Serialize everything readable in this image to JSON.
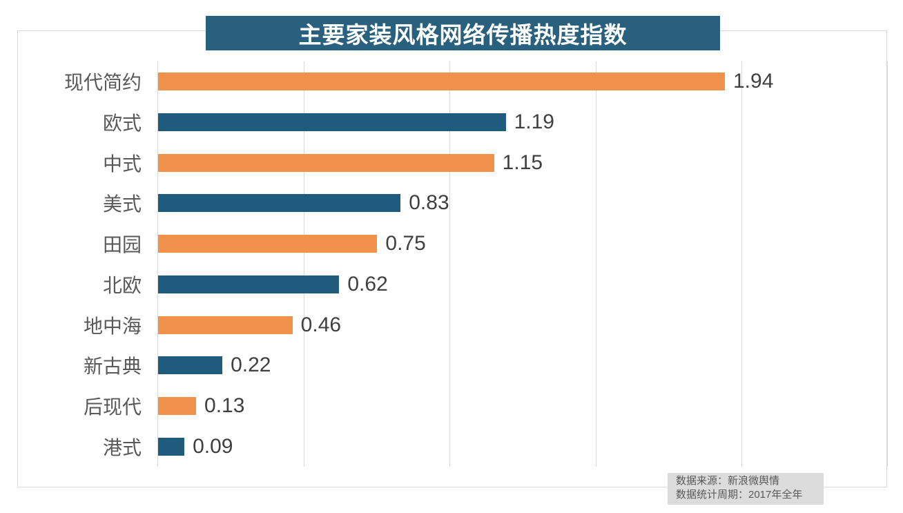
{
  "colors": {
    "orange": "#F0924C",
    "blue": "#1E5B7D",
    "banner_bg": "#28607E",
    "banner_text": "#FFFFFF",
    "gridline": "#D9D9D9",
    "frame_border": "#D9D9D9",
    "category_label": "#595959",
    "value_label": "#404040",
    "source_bg": "#DCDCDC",
    "source_text": "#595959"
  },
  "chart_data": {
    "type": "bar",
    "orientation": "horizontal",
    "title": "主要家装风格网络传播热度指数",
    "categories": [
      "现代简约",
      "欧式",
      "中式",
      "美式",
      "田园",
      "北欧",
      "地中海",
      "新古典",
      "后现代",
      "港式"
    ],
    "values": [
      1.94,
      1.19,
      1.15,
      0.83,
      0.75,
      0.62,
      0.46,
      0.22,
      0.13,
      0.09
    ],
    "value_labels": [
      "1.94",
      "1.19",
      "1.15",
      "0.83",
      "0.75",
      "0.62",
      "0.46",
      "0.22",
      "0.13",
      "0.09"
    ],
    "bar_colors": [
      "orange",
      "blue",
      "orange",
      "blue",
      "orange",
      "blue",
      "orange",
      "blue",
      "orange",
      "blue"
    ],
    "xlabel": "",
    "ylabel": "",
    "xlim": [
      0,
      2.5
    ],
    "grid_step": 0.5,
    "grid": "vertical-only",
    "legend": "none",
    "value_labels_position": "end-of-bar"
  },
  "source_note": {
    "line1": "数据来源：新浪微舆情",
    "line2": "数据统计周期：2017年全年"
  }
}
